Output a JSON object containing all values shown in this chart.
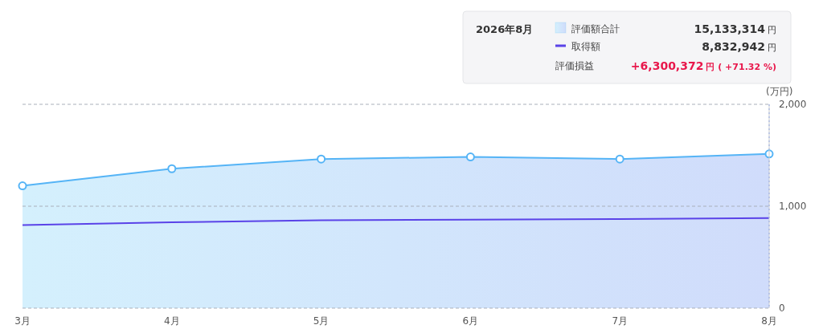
{
  "chart_data": {
    "type": "area",
    "categories": [
      "3月",
      "4月",
      "5月",
      "6月",
      "7月",
      "8月"
    ],
    "series": [
      {
        "name": "評価額合計",
        "color": "#55b4f6",
        "marker": "circle",
        "values": [
          1200,
          1368,
          1463,
          1484,
          1463,
          1513
        ]
      },
      {
        "name": "取得額",
        "type": "line",
        "color": "#5a43e8",
        "marker": "none",
        "values": [
          815,
          842,
          863,
          868,
          874,
          883
        ]
      }
    ],
    "ylabel": "(万円)",
    "ylim": [
      0,
      2000
    ],
    "yticks": [
      0,
      {
        "value": 1000,
        "label": "1,000"
      },
      {
        "value": 2000,
        "label": "2,000"
      }
    ],
    "grid": "y",
    "legend": "top right",
    "ref_lines": [
      {
        "axis": "x",
        "value": "8月",
        "color": "#6b8cf0",
        "line_style": "dotted"
      }
    ],
    "annotations": [
      "2026年8月",
      "15,133,314円",
      "8,832,942円",
      "評価損益",
      "+6,300,372円 ( +71.32 %)"
    ]
  }
}
